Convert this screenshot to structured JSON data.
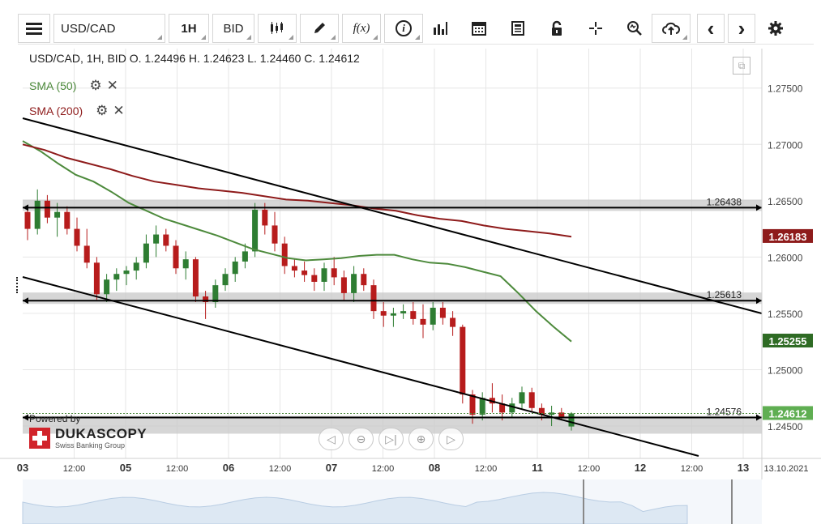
{
  "toolbar": {
    "menu_icon": "hamburger-icon",
    "symbol": "USD/CAD",
    "timeframe": "1H",
    "price_type": "BID",
    "icons": [
      "candlestick-icon",
      "pencil-icon",
      "function-icon",
      "info-icon",
      "bar-chart-icon",
      "calendar-icon",
      "news-icon",
      "lock-icon",
      "crosshair-icon",
      "zoom-icon",
      "cloud-upload-icon",
      "prev-arrow-icon",
      "next-arrow-icon",
      "settings-gear-icon"
    ],
    "fx_label": "f(x)",
    "info_label": "i",
    "prev_label": "‹",
    "next_label": "›"
  },
  "legend": {
    "ohlc": "USD/CAD, 1H, BID   O. 1.24496 H. 1.24623 L. 1.24460 C. 1.24612",
    "sma50": "SMA (50)",
    "sma200": "SMA (200)"
  },
  "branding": {
    "powered_by": "Powered by",
    "name": "DUKASCOPY",
    "tagline": "Swiss Banking Group"
  },
  "colors": {
    "candle_up": "#2e7d32",
    "candle_down": "#b71c1c",
    "sma50": "#4d8a3c",
    "sma200": "#8e1b1b",
    "trendline": "#000000",
    "zone": "#c8c8c8",
    "grid": "#e6e6e6"
  },
  "chart_data": {
    "type": "candlestick",
    "symbol": "USD/CAD",
    "interval": "1H",
    "ylim": [
      1.2422,
      1.2785
    ],
    "y_ticks": [
      "1.27500",
      "1.27000",
      "1.26500",
      "1.26000",
      "1.25500",
      "1.25000",
      "1.24500"
    ],
    "x_ticks": [
      "03",
      "12:00",
      "05",
      "12:00",
      "06",
      "12:00",
      "07",
      "12:00",
      "08",
      "12:00",
      "11",
      "12:00",
      "12",
      "12:00",
      "13"
    ],
    "x_end_label": "13.10.2021",
    "horizontal_levels": [
      {
        "label": "1.26438",
        "value": 1.26438
      },
      {
        "label": "1.25613",
        "value": 1.25613
      },
      {
        "label": "1.24576",
        "value": 1.24576
      }
    ],
    "price_labels": [
      {
        "label": "1.26183",
        "value": 1.26183,
        "series": "SMA (200)"
      },
      {
        "label": "1.25255",
        "value": 1.25255,
        "series": "SMA (50)"
      },
      {
        "label": "1.24612",
        "value": 1.24612,
        "series": "last"
      }
    ],
    "sma50": [
      1.2703,
      1.2694,
      1.2683,
      1.2673,
      1.2667,
      1.2658,
      1.2648,
      1.2641,
      1.2634,
      1.2629,
      1.2624,
      1.2619,
      1.2613,
      1.2607,
      1.2603,
      1.2599,
      1.2597,
      1.2598,
      1.2599,
      1.2601,
      1.2602,
      1.2602,
      1.2598,
      1.2595,
      1.2594,
      1.2591,
      1.2587,
      1.2583,
      1.2568,
      1.2552,
      1.2538,
      1.2525
    ],
    "sma200": [
      1.27,
      1.2695,
      1.2688,
      1.2683,
      1.2678,
      1.2672,
      1.2667,
      1.2664,
      1.2661,
      1.2659,
      1.2657,
      1.2654,
      1.2651,
      1.265,
      1.2648,
      1.2646,
      1.2643,
      1.2641,
      1.2637,
      1.2634,
      1.2632,
      1.2628,
      1.2625,
      1.2623,
      1.2621,
      1.2618
    ],
    "candles": [
      [
        1.264,
        1.2645,
        1.2615,
        1.2625
      ],
      [
        1.2625,
        1.266,
        1.262,
        1.265
      ],
      [
        1.265,
        1.2655,
        1.263,
        1.2635
      ],
      [
        1.2635,
        1.2648,
        1.2618,
        1.264
      ],
      [
        1.264,
        1.2645,
        1.262,
        1.2625
      ],
      [
        1.2625,
        1.2635,
        1.2605,
        1.261
      ],
      [
        1.261,
        1.2625,
        1.259,
        1.2595
      ],
      [
        1.2595,
        1.26,
        1.2562,
        1.2567
      ],
      [
        1.2567,
        1.2585,
        1.256,
        1.258
      ],
      [
        1.258,
        1.259,
        1.257,
        1.2585
      ],
      [
        1.2585,
        1.2592,
        1.2575,
        1.2588
      ],
      [
        1.2588,
        1.26,
        1.258,
        1.2595
      ],
      [
        1.2595,
        1.262,
        1.259,
        1.2612
      ],
      [
        1.2612,
        1.2628,
        1.26,
        1.262
      ],
      [
        1.262,
        1.2625,
        1.2605,
        1.261
      ],
      [
        1.261,
        1.2615,
        1.2585,
        1.259
      ],
      [
        1.259,
        1.2605,
        1.258,
        1.2598
      ],
      [
        1.2598,
        1.26,
        1.256,
        1.2565
      ],
      [
        1.2565,
        1.257,
        1.2545,
        1.256
      ],
      [
        1.256,
        1.258,
        1.2555,
        1.2575
      ],
      [
        1.2575,
        1.259,
        1.257,
        1.2585
      ],
      [
        1.2585,
        1.26,
        1.2578,
        1.2596
      ],
      [
        1.2596,
        1.2612,
        1.259,
        1.2605
      ],
      [
        1.2605,
        1.2648,
        1.26,
        1.2642
      ],
      [
        1.2642,
        1.2648,
        1.262,
        1.2628
      ],
      [
        1.2628,
        1.264,
        1.2605,
        1.2612
      ],
      [
        1.2612,
        1.2618,
        1.2585,
        1.2592
      ],
      [
        1.2592,
        1.2598,
        1.2582,
        1.2588
      ],
      [
        1.2588,
        1.2596,
        1.2578,
        1.2584
      ],
      [
        1.2584,
        1.259,
        1.257,
        1.2578
      ],
      [
        1.2578,
        1.2595,
        1.257,
        1.259
      ],
      [
        1.259,
        1.26,
        1.2575,
        1.2582
      ],
      [
        1.2582,
        1.2588,
        1.2562,
        1.2568
      ],
      [
        1.2568,
        1.2592,
        1.256,
        1.2585
      ],
      [
        1.2585,
        1.259,
        1.257,
        1.2575
      ],
      [
        1.2575,
        1.258,
        1.2545,
        1.2552
      ],
      [
        1.2552,
        1.256,
        1.2538,
        1.2548
      ],
      [
        1.2548,
        1.2555,
        1.2538,
        1.255
      ],
      [
        1.255,
        1.2558,
        1.2545,
        1.2552
      ],
      [
        1.2552,
        1.256,
        1.254,
        1.2545
      ],
      [
        1.2545,
        1.2558,
        1.2528,
        1.254
      ],
      [
        1.254,
        1.256,
        1.2535,
        1.2555
      ],
      [
        1.2555,
        1.256,
        1.254,
        1.2546
      ],
      [
        1.2546,
        1.2552,
        1.253,
        1.2538
      ],
      [
        1.2538,
        1.254,
        1.247,
        1.2478
      ],
      [
        1.2478,
        1.2482,
        1.2452,
        1.246
      ],
      [
        1.246,
        1.248,
        1.2455,
        1.2475
      ],
      [
        1.2475,
        1.2488,
        1.2462,
        1.247
      ],
      [
        1.247,
        1.2478,
        1.2455,
        1.2462
      ],
      [
        1.2462,
        1.2475,
        1.2458,
        1.247
      ],
      [
        1.247,
        1.2485,
        1.2465,
        1.248
      ],
      [
        1.248,
        1.2484,
        1.2462,
        1.2466
      ],
      [
        1.2466,
        1.247,
        1.2455,
        1.246
      ],
      [
        1.246,
        1.2468,
        1.245,
        1.2462
      ],
      [
        1.2462,
        1.2466,
        1.2455,
        1.2458
      ],
      [
        1.24496,
        1.24623,
        1.2446,
        1.24612
      ]
    ]
  }
}
